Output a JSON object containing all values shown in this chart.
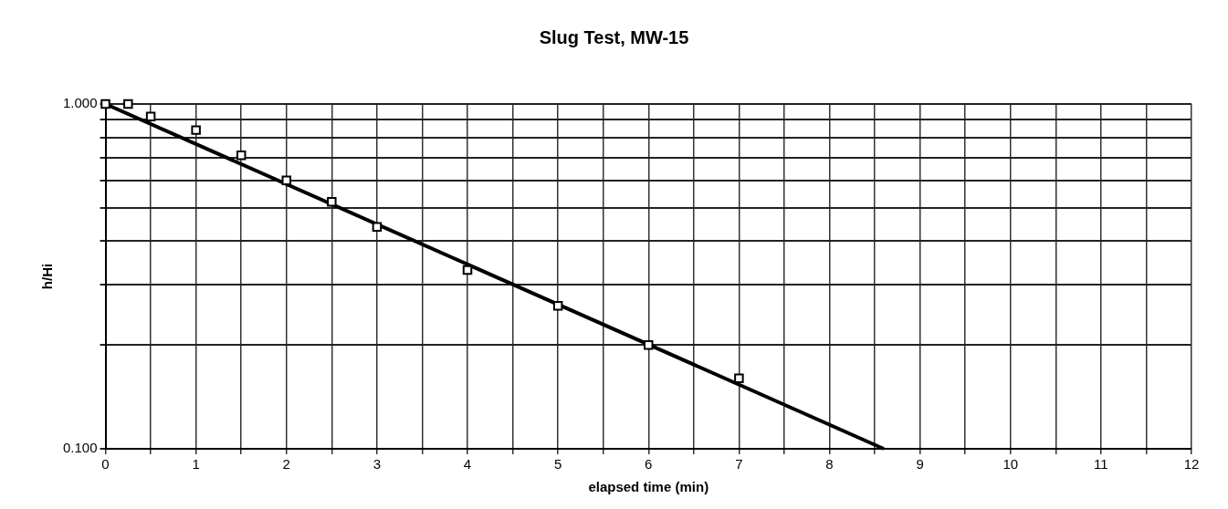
{
  "chart_data": {
    "type": "scatter",
    "title": "Slug Test, MW-15",
    "xlabel": "elapsed time (min)",
    "ylabel": "h/Hi",
    "log": "y",
    "grid": true,
    "legend": false,
    "marker": "square",
    "xlim": [
      0,
      12
    ],
    "ylim": [
      0.1,
      1
    ],
    "xticks": [
      0,
      {
        "value": 0.5,
        "label": null
      },
      1,
      {
        "value": 1.5,
        "label": null
      },
      2,
      {
        "value": 2.5,
        "label": null
      },
      3,
      {
        "value": 3.5,
        "label": null
      },
      4,
      {
        "value": 4.5,
        "label": null
      },
      5,
      {
        "value": 5.5,
        "label": null
      },
      6,
      {
        "value": 6.5,
        "label": null
      },
      7,
      {
        "value": 7.5,
        "label": null
      },
      8,
      {
        "value": 8.5,
        "label": null
      },
      9,
      {
        "value": 9.5,
        "label": null
      },
      10,
      {
        "value": 10.5,
        "label": null
      },
      11,
      {
        "value": 11.5,
        "label": null
      },
      12
    ],
    "yticks": [
      {
        "value": 0.1,
        "label": "0.100"
      },
      {
        "value": 0.2,
        "label": null
      },
      {
        "value": 0.3,
        "label": null
      },
      {
        "value": 0.4,
        "label": null
      },
      {
        "value": 0.5,
        "label": null
      },
      {
        "value": 0.6,
        "label": null
      },
      {
        "value": 0.7,
        "label": null
      },
      {
        "value": 0.8,
        "label": null
      },
      {
        "value": 0.9,
        "label": null
      },
      {
        "value": 1,
        "label": "1.000"
      }
    ],
    "series": [
      {
        "type": "scatter",
        "color": "#000000",
        "x": [
          0,
          0.25,
          0.5,
          1,
          1.5,
          2,
          2.5,
          3,
          4,
          5,
          6,
          7
        ],
        "values": [
          1.0,
          1.0,
          0.92,
          0.84,
          0.71,
          0.6,
          0.52,
          0.44,
          0.33,
          0.26,
          0.2,
          0.16
        ]
      },
      {
        "type": "line",
        "color": "#000000",
        "marker": "none",
        "x": [
          0,
          8.6
        ],
        "values": [
          1.0,
          0.1
        ]
      }
    ]
  }
}
